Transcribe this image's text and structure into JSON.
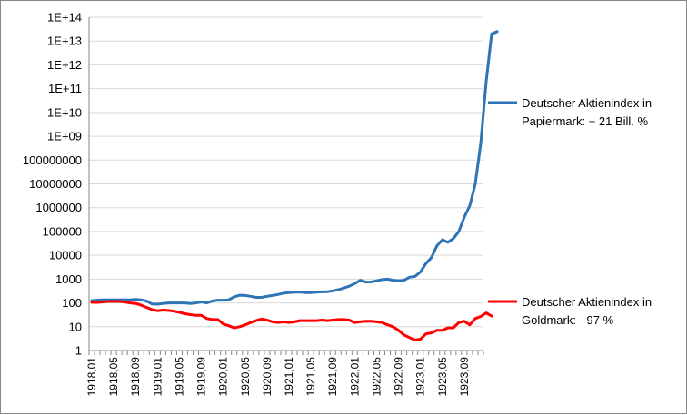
{
  "chart_data": {
    "type": "line",
    "title": "",
    "xlabel": "",
    "ylabel": "",
    "y_scale": "log10",
    "ylim": [
      1,
      100000000000000
    ],
    "y_tick_labels": [
      "1",
      "10",
      "100",
      "1000",
      "10000",
      "100000",
      "1000000",
      "10000000",
      "100000000",
      "1E+09",
      "1E+10",
      "1E+11",
      "1E+12",
      "1E+13",
      "1E+14"
    ],
    "x_tick_labels": [
      "1918,01",
      "1918,05",
      "1918,09",
      "1919,01",
      "1919,05",
      "1919,09",
      "1920,01",
      "1920,05",
      "1920,09",
      "1921,01",
      "1921,05",
      "1921,09",
      "1922,01",
      "1922,05",
      "1922,09",
      "1923,01",
      "1923,05",
      "1923,09"
    ],
    "x_start": "1918-01",
    "x_end": "1923-12",
    "grid": "horizontal",
    "legend": "right",
    "series": [
      {
        "name": "Deutscher Aktienindex in Papiermark: + 21 Bill. %",
        "name_lines": [
          "Deutscher Aktienindex in",
          "Papiermark: + 21 Bill. %"
        ],
        "color": "#2E75B6",
        "values": [
          125,
          130,
          135,
          135,
          135,
          135,
          135,
          135,
          140,
          135,
          120,
          90,
          88,
          95,
          100,
          100,
          100,
          100,
          95,
          100,
          110,
          100,
          120,
          130,
          130,
          135,
          180,
          210,
          205,
          190,
          170,
          170,
          190,
          205,
          225,
          255,
          270,
          280,
          285,
          270,
          270,
          280,
          290,
          295,
          320,
          360,
          420,
          500,
          650,
          900,
          750,
          760,
          850,
          950,
          1000,
          900,
          850,
          900,
          1200,
          1300,
          2000,
          4500,
          8000,
          25000,
          45000,
          35000,
          50000,
          100000,
          400000,
          1200000,
          10000000,
          500000000,
          200000000000,
          20000000000000,
          25000000000000
        ]
      },
      {
        "name": "Deutscher Aktienindex in Goldmark: - 97 %",
        "name_lines": [
          "Deutscher Aktienindex in",
          "Goldmark: - 97 %"
        ],
        "color": "#FF0000",
        "values": [
          105,
          105,
          110,
          115,
          115,
          115,
          110,
          100,
          95,
          80,
          65,
          52,
          47,
          50,
          48,
          45,
          40,
          35,
          32,
          30,
          30,
          22,
          20,
          20,
          13,
          11,
          9,
          10,
          12,
          15,
          18,
          21,
          19,
          16,
          15,
          16,
          15,
          16,
          18,
          18,
          18,
          18,
          19,
          18,
          19,
          20,
          20,
          19,
          15,
          16,
          17,
          17,
          16,
          15,
          12,
          10,
          7,
          4.5,
          3.5,
          2.8,
          3,
          5,
          5.5,
          7,
          7,
          9,
          9,
          15,
          17,
          12,
          22,
          27,
          38,
          28
        ]
      }
    ]
  }
}
